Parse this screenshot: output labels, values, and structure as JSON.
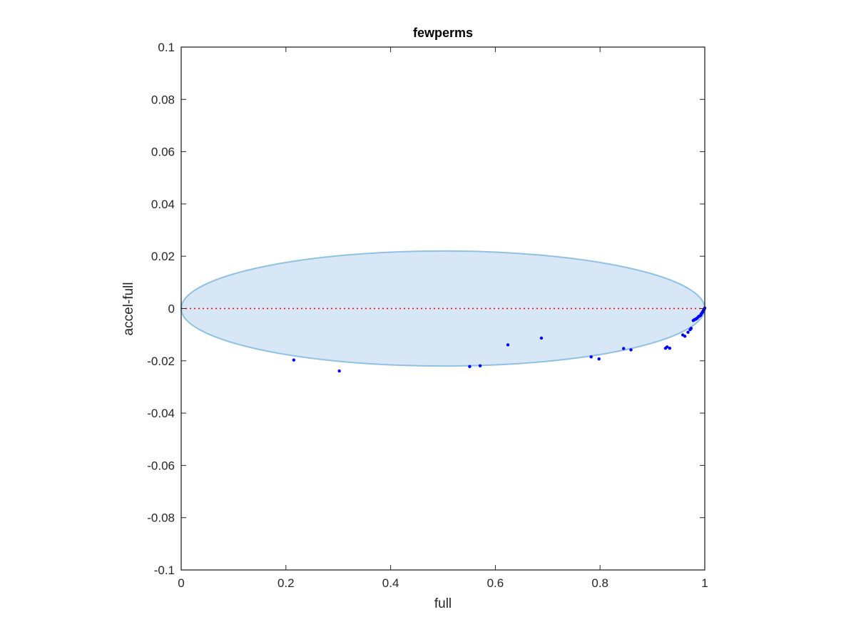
{
  "chart_data": {
    "type": "scatter",
    "title": "fewperms",
    "xlabel": "full",
    "ylabel": "accel-full",
    "xlim": [
      0,
      1
    ],
    "ylim": [
      -0.1,
      0.1
    ],
    "xticks": [
      0,
      0.2,
      0.4,
      0.6,
      0.8,
      1
    ],
    "xtick_labels": [
      "0",
      "0.2",
      "0.4",
      "0.6",
      "0.8",
      "1"
    ],
    "yticks": [
      -0.1,
      -0.08,
      -0.06,
      -0.04,
      -0.02,
      0,
      0.02,
      0.04,
      0.06,
      0.08,
      0.1
    ],
    "ytick_labels": [
      "-0.1",
      "-0.08",
      "-0.06",
      "-0.04",
      "-0.02",
      "0",
      "0.02",
      "0.04",
      "0.06",
      "0.08",
      "0.1"
    ],
    "grid": false,
    "reference_line": {
      "y": 0,
      "style": "dotted",
      "color": "#ff0000"
    },
    "region": {
      "shape": "ellipse",
      "center": [
        0.5,
        0
      ],
      "x_range": [
        0,
        1
      ],
      "y_range": [
        -0.022,
        0.022
      ],
      "fill": "#d8e7f5",
      "stroke": "#8fc1e3"
    },
    "series": [
      {
        "color": "#0000ff",
        "x": [
          0.215,
          0.302,
          0.551,
          0.571,
          0.624,
          0.688,
          0.783,
          0.798,
          0.845,
          0.859,
          0.925,
          0.928,
          0.933,
          0.958,
          0.962,
          0.968,
          0.972,
          0.974,
          0.978,
          0.98,
          0.982,
          0.984,
          0.986,
          0.988,
          0.99,
          0.992,
          0.993,
          0.995,
          0.996,
          0.997,
          0.998,
          0.999,
          1.0
        ],
        "y": [
          -0.0197,
          -0.0239,
          -0.0222,
          -0.0219,
          -0.0139,
          -0.0113,
          -0.0185,
          -0.0193,
          -0.0153,
          -0.0158,
          -0.0152,
          -0.0147,
          -0.0152,
          -0.0101,
          -0.0106,
          -0.0091,
          -0.0081,
          -0.0076,
          -0.0046,
          -0.0043,
          -0.0041,
          -0.0039,
          -0.0036,
          -0.0031,
          -0.0029,
          -0.0026,
          -0.0021,
          -0.0016,
          -0.0013,
          -0.0009,
          -0.0006,
          -0.0003,
          0.0002
        ]
      }
    ]
  }
}
